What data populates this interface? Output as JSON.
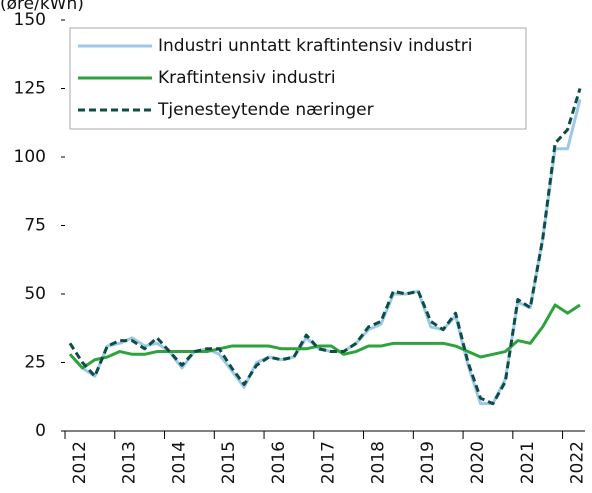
{
  "chart_data": {
    "type": "line",
    "y_label": "(øre/kWh)",
    "categories": [
      "2012",
      null,
      null,
      null,
      "2013",
      null,
      null,
      null,
      "2014",
      null,
      null,
      null,
      "2015",
      null,
      null,
      null,
      "2016",
      null,
      null,
      null,
      "2017",
      null,
      null,
      null,
      "2018",
      null,
      null,
      null,
      "2019",
      null,
      null,
      null,
      "2020",
      null,
      null,
      null,
      "2021",
      null,
      null,
      null,
      "2022",
      null
    ],
    "series": [
      {
        "name": "Industri unntatt kraftintensiv industri",
        "color": "#9cc9ea",
        "dash": false,
        "values": [
          28,
          23,
          20,
          31,
          32,
          34,
          31,
          32,
          29,
          23,
          29,
          30,
          28,
          22,
          16,
          25,
          27,
          26,
          27,
          34,
          30,
          29,
          29,
          32,
          37,
          39,
          50,
          50,
          51,
          38,
          37,
          42,
          24,
          10,
          10,
          19,
          47,
          45,
          70,
          103,
          103,
          121
        ]
      },
      {
        "name": "Kraftintensiv industri",
        "color": "#2ea23c",
        "dash": false,
        "values": [
          28,
          23,
          26,
          27,
          29,
          28,
          28,
          29,
          29,
          29,
          29,
          29,
          30,
          31,
          31,
          31,
          31,
          30,
          30,
          30,
          31,
          31,
          28,
          29,
          31,
          31,
          32,
          32,
          32,
          32,
          32,
          31,
          29,
          27,
          28,
          29,
          33,
          32,
          38,
          46,
          43,
          46
        ]
      },
      {
        "name": "Tjenesteytende næringer",
        "color": "#0e4d44",
        "dash": true,
        "values": [
          32,
          25,
          20,
          31,
          33,
          33,
          30,
          34,
          29,
          24,
          29,
          30,
          30,
          23,
          17,
          24,
          27,
          26,
          27,
          35,
          30,
          29,
          29,
          32,
          38,
          40,
          51,
          50,
          51,
          40,
          37,
          43,
          25,
          12,
          10,
          18,
          48,
          45,
          70,
          105,
          110,
          125
        ]
      }
    ],
    "ylim": [
      0,
      150
    ],
    "yticks": [
      0,
      25,
      50,
      75,
      100,
      125,
      150
    ],
    "legend": "top-left"
  }
}
